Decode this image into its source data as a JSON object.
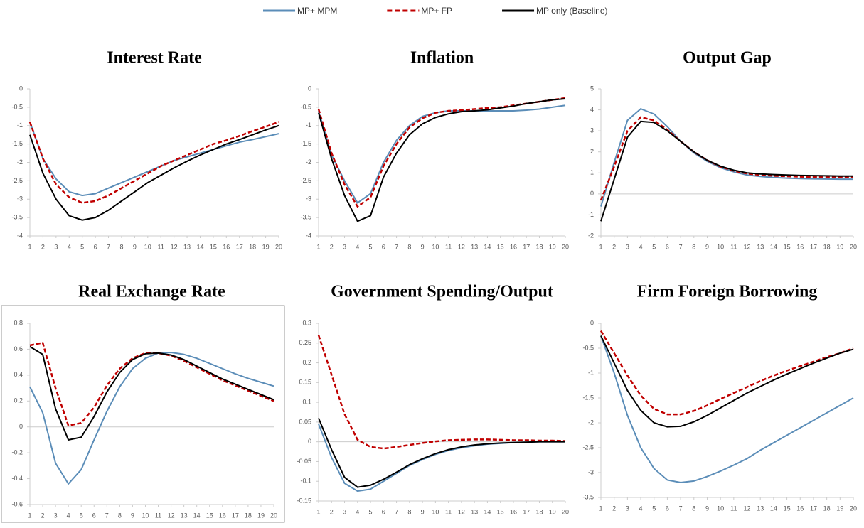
{
  "chart_data": [
    {
      "type": "line",
      "title": "Interest Rate",
      "x": [
        1,
        2,
        3,
        4,
        5,
        6,
        7,
        8,
        9,
        10,
        11,
        12,
        13,
        14,
        15,
        16,
        17,
        18,
        19,
        20
      ],
      "xlim": [
        1,
        20
      ],
      "xticks": [
        1,
        2,
        3,
        4,
        5,
        6,
        7,
        8,
        9,
        10,
        11,
        12,
        13,
        14,
        15,
        16,
        17,
        18,
        19,
        20
      ],
      "ylim": [
        -4,
        0
      ],
      "yticks": [
        -4,
        -3.5,
        -3,
        -2.5,
        -2,
        -1.5,
        -1,
        -0.5,
        0
      ],
      "series": [
        {
          "name": "MP+ MPM",
          "color": "#5b8db8",
          "values": [
            -0.9,
            -1.9,
            -2.45,
            -2.8,
            -2.9,
            -2.85,
            -2.7,
            -2.55,
            -2.4,
            -2.25,
            -2.1,
            -1.95,
            -1.85,
            -1.75,
            -1.65,
            -1.55,
            -1.45,
            -1.38,
            -1.3,
            -1.22
          ]
        },
        {
          "name": "MP+ FP",
          "color": "#c00000",
          "dashed": true,
          "values": [
            -0.9,
            -1.9,
            -2.6,
            -2.95,
            -3.1,
            -3.05,
            -2.9,
            -2.7,
            -2.5,
            -2.3,
            -2.1,
            -1.95,
            -1.8,
            -1.65,
            -1.5,
            -1.4,
            -1.28,
            -1.15,
            -1.03,
            -0.9
          ]
        },
        {
          "name": "MP only (Baseline)",
          "color": "#000000",
          "values": [
            -1.25,
            -2.3,
            -3.0,
            -3.45,
            -3.57,
            -3.5,
            -3.3,
            -3.05,
            -2.8,
            -2.55,
            -2.35,
            -2.15,
            -1.97,
            -1.8,
            -1.65,
            -1.5,
            -1.38,
            -1.25,
            -1.12,
            -1.0
          ]
        }
      ]
    },
    {
      "type": "line",
      "title": "Inflation",
      "x": [
        1,
        2,
        3,
        4,
        5,
        6,
        7,
        8,
        9,
        10,
        11,
        12,
        13,
        14,
        15,
        16,
        17,
        18,
        19,
        20
      ],
      "xlim": [
        1,
        20
      ],
      "xticks": [
        1,
        2,
        3,
        4,
        5,
        6,
        7,
        8,
        9,
        10,
        11,
        12,
        13,
        14,
        15,
        16,
        17,
        18,
        19,
        20
      ],
      "ylim": [
        -4,
        0
      ],
      "yticks": [
        -4,
        -3.5,
        -3,
        -2.5,
        -2,
        -1.5,
        -1,
        -0.5,
        0
      ],
      "series": [
        {
          "color": "#5b8db8",
          "values": [
            -0.6,
            -1.8,
            -2.5,
            -3.1,
            -2.85,
            -2.0,
            -1.4,
            -1.0,
            -0.75,
            -0.65,
            -0.6,
            -0.6,
            -0.6,
            -0.6,
            -0.6,
            -0.6,
            -0.58,
            -0.55,
            -0.5,
            -0.45
          ]
        },
        {
          "color": "#c00000",
          "dashed": true,
          "values": [
            -0.55,
            -1.75,
            -2.6,
            -3.2,
            -2.95,
            -2.1,
            -1.5,
            -1.05,
            -0.8,
            -0.65,
            -0.6,
            -0.58,
            -0.55,
            -0.52,
            -0.5,
            -0.45,
            -0.4,
            -0.35,
            -0.3,
            -0.25
          ]
        },
        {
          "color": "#000000",
          "values": [
            -0.65,
            -1.9,
            -2.9,
            -3.6,
            -3.45,
            -2.4,
            -1.75,
            -1.25,
            -0.95,
            -0.78,
            -0.68,
            -0.62,
            -0.6,
            -0.57,
            -0.52,
            -0.47,
            -0.4,
            -0.35,
            -0.3,
            -0.27
          ]
        }
      ]
    },
    {
      "type": "line",
      "title": "Output Gap",
      "x": [
        1,
        2,
        3,
        4,
        5,
        6,
        7,
        8,
        9,
        10,
        11,
        12,
        13,
        14,
        15,
        16,
        17,
        18,
        19,
        20
      ],
      "xlim": [
        1,
        20
      ],
      "xticks": [
        1,
        2,
        3,
        4,
        5,
        6,
        7,
        8,
        9,
        10,
        11,
        12,
        13,
        14,
        15,
        16,
        17,
        18,
        19,
        20
      ],
      "ylim": [
        -2,
        5
      ],
      "yticks": [
        -2,
        -1,
        0,
        1,
        2,
        3,
        4,
        5
      ],
      "series": [
        {
          "color": "#5b8db8",
          "values": [
            -0.6,
            1.5,
            3.5,
            4.05,
            3.8,
            3.2,
            2.5,
            1.95,
            1.55,
            1.25,
            1.05,
            0.9,
            0.83,
            0.78,
            0.75,
            0.73,
            0.72,
            0.71,
            0.7,
            0.7
          ]
        },
        {
          "color": "#c00000",
          "dashed": true,
          "values": [
            -0.3,
            1.3,
            3.0,
            3.65,
            3.5,
            3.05,
            2.5,
            2.0,
            1.6,
            1.3,
            1.1,
            0.97,
            0.9,
            0.86,
            0.84,
            0.82,
            0.81,
            0.8,
            0.8,
            0.8
          ]
        },
        {
          "color": "#000000",
          "values": [
            -1.3,
            0.7,
            2.7,
            3.45,
            3.4,
            3.0,
            2.5,
            2.0,
            1.6,
            1.32,
            1.13,
            1.0,
            0.95,
            0.92,
            0.9,
            0.88,
            0.87,
            0.86,
            0.85,
            0.85
          ]
        }
      ]
    },
    {
      "type": "line",
      "title": "Real Exchange Rate",
      "frame": true,
      "x": [
        1,
        2,
        3,
        4,
        5,
        6,
        7,
        8,
        9,
        10,
        11,
        12,
        13,
        14,
        15,
        16,
        17,
        18,
        19,
        20
      ],
      "xlim": [
        1,
        20
      ],
      "xticks": [
        1,
        2,
        3,
        4,
        5,
        6,
        7,
        8,
        9,
        10,
        11,
        12,
        13,
        14,
        15,
        16,
        17,
        18,
        19,
        20
      ],
      "ylim": [
        -0.6,
        0.8
      ],
      "yticks": [
        -0.6,
        -0.4,
        -0.2,
        0,
        0.2,
        0.4,
        0.6,
        0.8
      ],
      "series": [
        {
          "color": "#5b8db8",
          "values": [
            0.31,
            0.11,
            -0.28,
            -0.44,
            -0.33,
            -0.1,
            0.12,
            0.31,
            0.45,
            0.53,
            0.57,
            0.575,
            0.56,
            0.53,
            0.49,
            0.45,
            0.41,
            0.375,
            0.345,
            0.315
          ]
        },
        {
          "color": "#c00000",
          "dashed": true,
          "values": [
            0.63,
            0.65,
            0.3,
            0.01,
            0.03,
            0.15,
            0.32,
            0.45,
            0.53,
            0.57,
            0.57,
            0.55,
            0.51,
            0.46,
            0.41,
            0.36,
            0.32,
            0.28,
            0.24,
            0.2
          ]
        },
        {
          "color": "#000000",
          "values": [
            0.62,
            0.56,
            0.14,
            -0.1,
            -0.08,
            0.08,
            0.27,
            0.42,
            0.52,
            0.565,
            0.57,
            0.555,
            0.52,
            0.47,
            0.42,
            0.37,
            0.33,
            0.29,
            0.25,
            0.21
          ]
        }
      ]
    },
    {
      "type": "line",
      "title": "Government Spending/Output",
      "x": [
        1,
        2,
        3,
        4,
        5,
        6,
        7,
        8,
        9,
        10,
        11,
        12,
        13,
        14,
        15,
        16,
        17,
        18,
        19,
        20
      ],
      "xlim": [
        1,
        20
      ],
      "xticks": [
        1,
        2,
        3,
        4,
        5,
        6,
        7,
        8,
        9,
        10,
        11,
        12,
        13,
        14,
        15,
        16,
        17,
        18,
        19,
        20
      ],
      "ylim": [
        -0.15,
        0.3
      ],
      "yticks": [
        -0.15,
        -0.1,
        -0.05,
        0,
        0.05,
        0.1,
        0.15,
        0.2,
        0.25,
        0.3
      ],
      "series": [
        {
          "color": "#5b8db8",
          "values": [
            0.045,
            -0.04,
            -0.105,
            -0.125,
            -0.12,
            -0.1,
            -0.08,
            -0.06,
            -0.045,
            -0.032,
            -0.022,
            -0.015,
            -0.01,
            -0.006,
            -0.004,
            -0.002,
            -0.001,
            0,
            0,
            0
          ]
        },
        {
          "color": "#c00000",
          "dashed": true,
          "values": [
            0.27,
            0.17,
            0.07,
            0.005,
            -0.013,
            -0.017,
            -0.013,
            -0.008,
            -0.003,
            0.001,
            0.004,
            0.005,
            0.006,
            0.006,
            0.005,
            0.004,
            0.004,
            0.003,
            0.003,
            0.002
          ]
        },
        {
          "color": "#000000",
          "values": [
            0.06,
            -0.02,
            -0.09,
            -0.115,
            -0.11,
            -0.095,
            -0.077,
            -0.058,
            -0.043,
            -0.03,
            -0.02,
            -0.013,
            -0.008,
            -0.005,
            -0.003,
            -0.002,
            -0.001,
            0,
            0,
            0
          ]
        }
      ]
    },
    {
      "type": "line",
      "title": "Firm Foreign Borrowing",
      "x": [
        1,
        2,
        3,
        4,
        5,
        6,
        7,
        8,
        9,
        10,
        11,
        12,
        13,
        14,
        15,
        16,
        17,
        18,
        19,
        20
      ],
      "xlim": [
        1,
        20
      ],
      "xticks": [
        1,
        2,
        3,
        4,
        5,
        6,
        7,
        8,
        9,
        10,
        11,
        12,
        13,
        14,
        15,
        16,
        17,
        18,
        19,
        20
      ],
      "ylim": [
        -3.5,
        0
      ],
      "yticks": [
        -3.5,
        -3,
        -2.5,
        -2,
        -1.5,
        -1,
        -0.5,
        0
      ],
      "series": [
        {
          "color": "#5b8db8",
          "values": [
            -0.25,
            -1.0,
            -1.85,
            -2.5,
            -2.92,
            -3.15,
            -3.2,
            -3.17,
            -3.08,
            -2.97,
            -2.85,
            -2.72,
            -2.55,
            -2.4,
            -2.25,
            -2.1,
            -1.95,
            -1.8,
            -1.65,
            -1.5
          ]
        },
        {
          "color": "#c00000",
          "dashed": true,
          "values": [
            -0.15,
            -0.6,
            -1.05,
            -1.45,
            -1.72,
            -1.83,
            -1.83,
            -1.76,
            -1.65,
            -1.52,
            -1.4,
            -1.28,
            -1.16,
            -1.05,
            -0.95,
            -0.86,
            -0.77,
            -0.68,
            -0.6,
            -0.5
          ]
        },
        {
          "color": "#000000",
          "values": [
            -0.25,
            -0.8,
            -1.35,
            -1.75,
            -2.0,
            -2.08,
            -2.07,
            -1.98,
            -1.85,
            -1.7,
            -1.55,
            -1.4,
            -1.27,
            -1.14,
            -1.02,
            -0.91,
            -0.8,
            -0.7,
            -0.6,
            -0.52
          ]
        }
      ]
    }
  ]
}
